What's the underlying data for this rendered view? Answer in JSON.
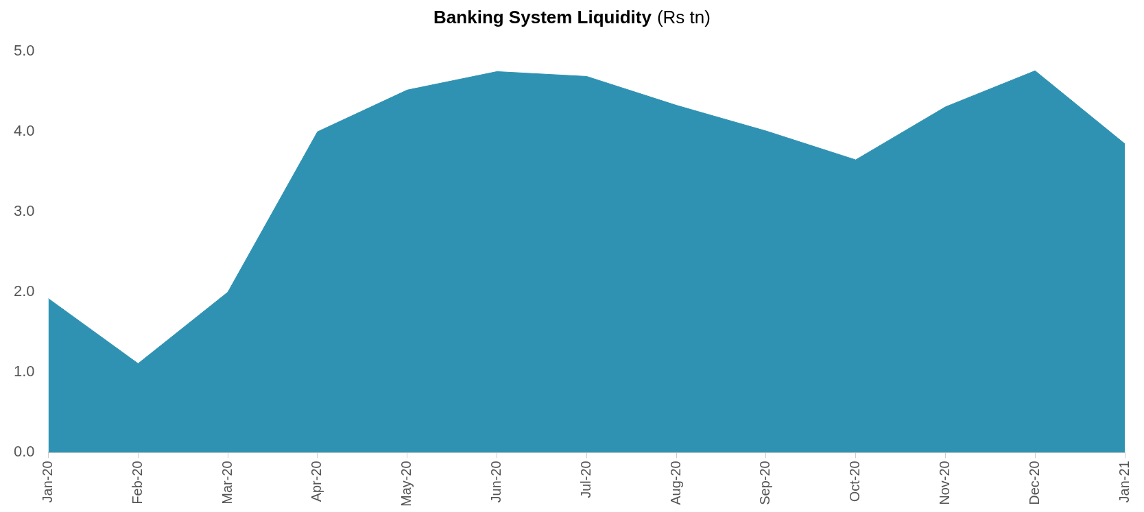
{
  "chart_data": {
    "type": "area",
    "title": "Banking System Liquidity",
    "subtitle": "(Rs tn)",
    "categories": [
      "Jan-20",
      "Feb-20",
      "Mar-20",
      "Apr-20",
      "May-20",
      "Jun-20",
      "Jul-20",
      "Aug-20",
      "Sep-20",
      "Oct-20",
      "Nov-20",
      "Dec-20",
      "Jan-21"
    ],
    "values": [
      1.92,
      1.11,
      2.0,
      4.0,
      4.52,
      4.75,
      4.69,
      4.33,
      4.01,
      3.65,
      4.31,
      4.76,
      3.85
    ],
    "color": "#2f92b2",
    "marker": "none",
    "ylim": [
      0,
      5
    ],
    "yticks": [
      {
        "value": 0,
        "label": "0.0"
      },
      {
        "value": 1,
        "label": "1.0"
      },
      {
        "value": 2,
        "label": "2.0"
      },
      {
        "value": 3,
        "label": "3.0"
      },
      {
        "value": 4,
        "label": "4.0"
      },
      {
        "value": 5,
        "label": "5.0"
      }
    ]
  }
}
